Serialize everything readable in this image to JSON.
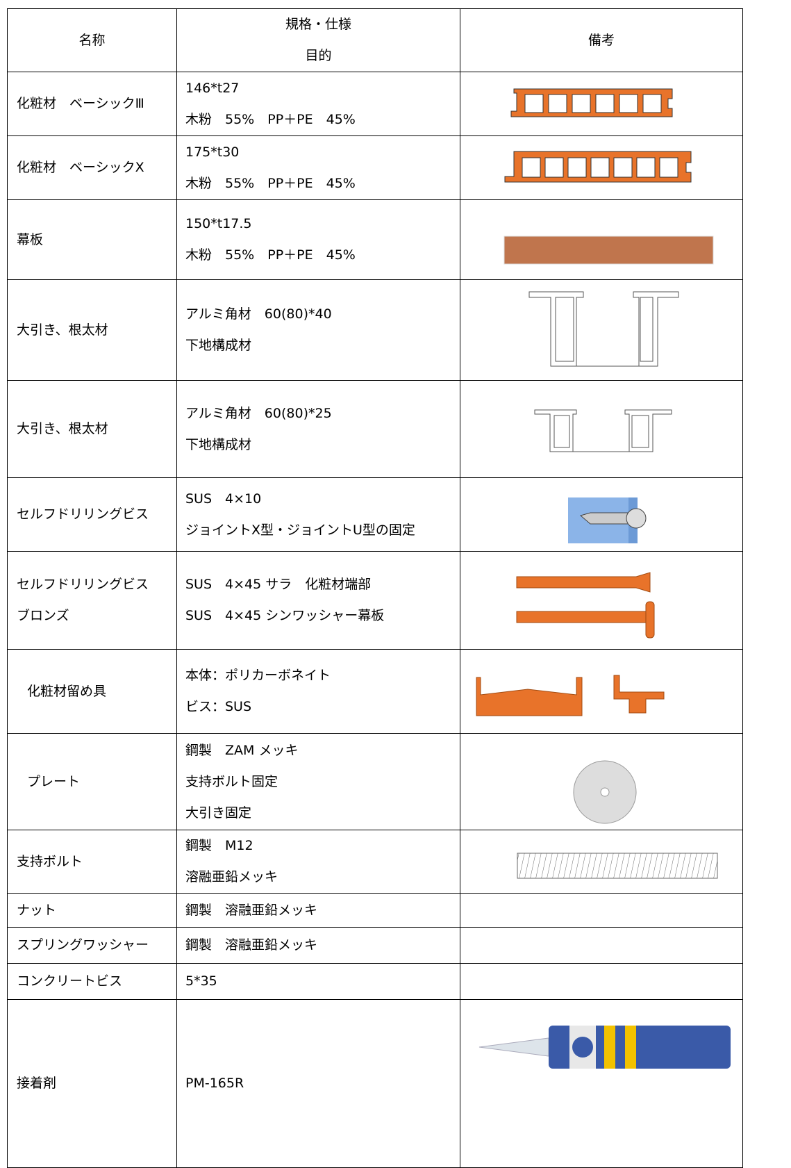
{
  "table": {
    "header": {
      "name": "名称",
      "spec": [
        "規格・仕様",
        "目的"
      ],
      "note": "備考"
    },
    "rows": [
      {
        "name": [
          "化粧材　ベーシックⅢ"
        ],
        "spec": [
          "146*t27",
          "木粉　55%　PP＋PE　45%"
        ]
      },
      {
        "name": [
          "化粧材　ベーシックX"
        ],
        "spec": [
          "175*t30",
          "木粉　55%　PP＋PE　45%"
        ]
      },
      {
        "name": [
          "幕板"
        ],
        "spec": [
          "150*t17.5",
          "木粉　55%　PP＋PE　45%"
        ]
      },
      {
        "name": [
          "大引き、根太材"
        ],
        "spec": [
          "アルミ角材　60(80)*40",
          "下地構成材"
        ]
      },
      {
        "name": [
          "大引き、根太材"
        ],
        "spec": [
          "アルミ角材　60(80)*25",
          "下地構成材"
        ]
      },
      {
        "name": [
          "セルフドリリングビス"
        ],
        "spec": [
          "SUS　4×10",
          "ジョイントX型・ジョイントU型の固定"
        ]
      },
      {
        "name": [
          "セルフドリリングビス",
          "ブロンズ"
        ],
        "spec": [
          "SUS　4×45 サラ　化粧材端部",
          "SUS　4×45 シンワッシャー幕板"
        ]
      },
      {
        "name": [
          "化粧材留め具"
        ],
        "spec": [
          "本体：ポリカーボネイト",
          "ビス：SUS"
        ]
      },
      {
        "name": [
          "プレート"
        ],
        "spec": [
          "鋼製　ZAM メッキ",
          "支持ボルト固定",
          "大引き固定"
        ]
      },
      {
        "name": [
          "支持ボルト"
        ],
        "spec": [
          "鋼製　M12",
          "溶融亜鉛メッキ"
        ]
      },
      {
        "name": [
          "ナット"
        ],
        "spec": [
          "鋼製　溶融亜鉛メッキ"
        ]
      },
      {
        "name": [
          "スプリングワッシャー"
        ],
        "spec": [
          "鋼製　溶融亜鉛メッキ"
        ]
      },
      {
        "name": [
          "コンクリートビス"
        ],
        "spec": [
          "5*35"
        ]
      },
      {
        "name": [
          "接着剤"
        ],
        "spec": [
          "PM-165R"
        ]
      }
    ]
  }
}
